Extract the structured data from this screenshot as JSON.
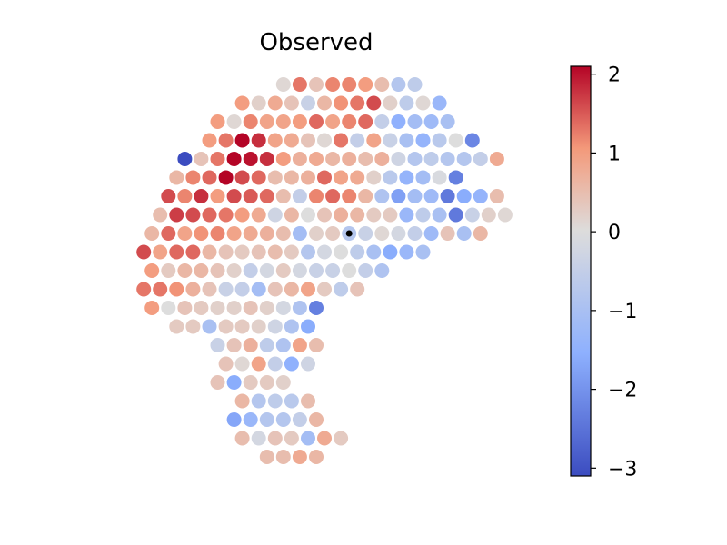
{
  "chart_data": {
    "type": "scatter",
    "title": "Observed",
    "xlabel": "",
    "ylabel": "",
    "axes_visible": false,
    "colormap": "coolwarm",
    "colorbar": {
      "range": [
        -3.1,
        2.1
      ],
      "ticks": [
        2,
        1,
        0,
        -1,
        -2,
        -3
      ],
      "tick_labels": [
        "2",
        "1",
        "0",
        "−1",
        "−2",
        "−3"
      ],
      "placement": "right"
    },
    "grid_note": "hexagonal spot grid; x = column (half-steps), y = row",
    "rows": [
      {
        "y": 0,
        "x0": 21,
        "values": [
          0.1,
          1.3,
          0.4,
          1.2,
          1.2,
          1.0,
          0.5,
          -0.8,
          -0.6
        ]
      },
      {
        "y": 1,
        "x0": 16,
        "values": [
          1.0,
          0.2,
          0.8,
          0.4,
          -0.4,
          0.6,
          1.1,
          1.3,
          1.6,
          0.2,
          -0.6,
          0.1,
          -1.3
        ]
      },
      {
        "y": 2,
        "x0": 13,
        "values": [
          1.0,
          0.1,
          1.2,
          0.9,
          0.9,
          1.0,
          1.4,
          0.9,
          1.2,
          1.4,
          -0.5,
          -1.5,
          -1.1,
          -1.2,
          -1.0
        ]
      },
      {
        "y": 3,
        "x0": 12,
        "values": [
          1.0,
          1.3,
          2.2,
          1.8,
          0.9,
          0.8,
          0.4,
          0.1,
          1.3,
          -0.5,
          0.9,
          -0.4,
          -1.0,
          -1.4,
          -0.7,
          0.0,
          -2.2
        ]
      },
      {
        "y": 4,
        "x0": 9,
        "values": [
          -3.1,
          0.4,
          1.3,
          2.2,
          2.0,
          1.8,
          1.0,
          0.7,
          0.8,
          0.6,
          0.7,
          0.5,
          0.7,
          -0.3,
          -0.8,
          -0.6,
          -0.8,
          -0.8,
          -0.5,
          0.8
        ]
      },
      {
        "y": 5,
        "x0": 8,
        "values": [
          0.6,
          1.2,
          1.4,
          2.2,
          1.6,
          1.4,
          0.5,
          0.6,
          0.7,
          1.4,
          0.9,
          0.8,
          0.2,
          -0.7,
          -1.4,
          -1.1,
          -0.1,
          -2.3
        ]
      },
      {
        "y": 6,
        "x0": 7,
        "values": [
          1.6,
          1.2,
          1.8,
          1.0,
          1.6,
          1.5,
          1.4,
          0.5,
          -0.5,
          1.2,
          1.4,
          1.2,
          0.6,
          -0.9,
          -1.8,
          -1.1,
          -1.2,
          -2.4,
          -1.6,
          -1.4,
          0.5
        ]
      },
      {
        "y": 7,
        "x0": 6,
        "values": [
          0.5,
          1.7,
          1.6,
          1.4,
          1.3,
          1.0,
          0.8,
          -0.3,
          0.6,
          0.0,
          0.4,
          0.7,
          0.6,
          0.3,
          0.3,
          -1.3,
          -0.6,
          -1.0,
          -2.4,
          -0.4,
          0.2,
          0.1
        ]
      },
      {
        "y": 8,
        "x0": 5,
        "values": [
          0.6,
          1.4,
          0.9,
          1.1,
          1.2,
          0.9,
          0.8,
          0.7,
          0.5,
          -1.1,
          0.2,
          0.3,
          -0.8,
          -0.4,
          0.1,
          -0.2,
          -0.5,
          -1.2,
          0.4,
          -1.0,
          0.6
        ]
      },
      {
        "y": 9,
        "x0": 4,
        "values": [
          1.6,
          0.9,
          1.4,
          1.4,
          0.6,
          0.4,
          0.3,
          0.4,
          0.5,
          0.3,
          -0.8,
          -0.2,
          0.0,
          -0.6,
          -1.0,
          -1.6,
          -1.3,
          -1.0
        ]
      },
      {
        "y": 10,
        "x0": 5,
        "values": [
          1.0,
          0.3,
          0.6,
          0.6,
          0.4,
          0.2,
          -0.5,
          -0.2,
          0.3,
          -0.2,
          -0.4,
          -0.4,
          0.0,
          -0.5,
          -0.9
        ]
      },
      {
        "y": 11,
        "x0": 4,
        "values": [
          1.3,
          1.3,
          1.1,
          0.7,
          0.4,
          -0.4,
          -0.5,
          -1.1,
          0.4,
          0.6,
          0.9,
          0.3,
          -0.6,
          0.4
        ]
      },
      {
        "y": 12,
        "x0": 5,
        "values": [
          1.0,
          0.0,
          0.4,
          0.3,
          0.2,
          0.2,
          0.4,
          0.2,
          -0.2,
          -0.9,
          -2.3
        ]
      },
      {
        "y": 13,
        "x0": 8,
        "values": [
          0.3,
          0.3,
          -1.0,
          0.3,
          0.3,
          0.2,
          -0.3,
          -0.9,
          -1.6
        ]
      },
      {
        "y": 14,
        "x0": 13,
        "values": [
          -0.4,
          0.4,
          0.7,
          -0.6,
          -0.9,
          0.9,
          0.5
        ]
      },
      {
        "y": 15,
        "x0": 14,
        "values": [
          0.4,
          0.1,
          0.9,
          -0.5,
          -1.5,
          -0.3
        ]
      },
      {
        "y": 16,
        "x0": 13,
        "values": [
          0.4,
          -1.6,
          0.3,
          0.3,
          0.2
        ]
      },
      {
        "y": 17,
        "x0": 16,
        "values": [
          0.6,
          -0.8,
          -0.6,
          -0.7,
          0.5
        ]
      },
      {
        "y": 18,
        "x0": 15,
        "values": [
          -1.7,
          -1.3,
          -0.8,
          -0.8,
          -0.5,
          0.6
        ]
      },
      {
        "y": 19,
        "x0": 16,
        "values": [
          0.5,
          -0.2,
          0.4,
          0.3,
          -1.1,
          0.8,
          0.3
        ]
      },
      {
        "y": 20,
        "x0": 19,
        "values": [
          0.5,
          0.5,
          0.8,
          0.6
        ]
      }
    ]
  }
}
